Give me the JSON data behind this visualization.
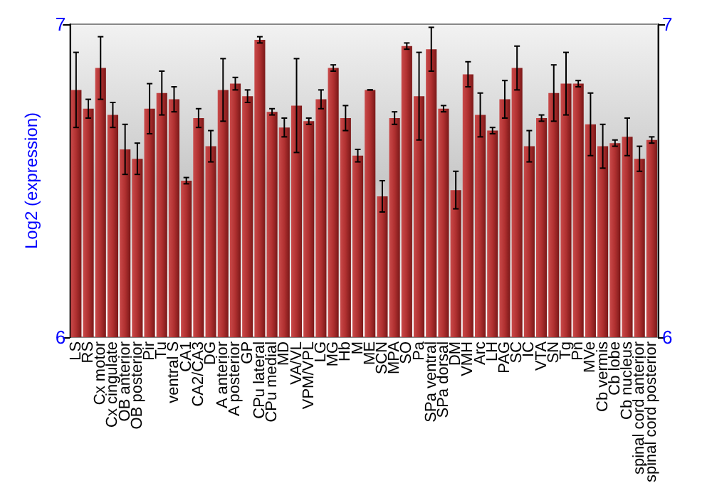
{
  "chart_data": {
    "type": "bar",
    "ylabel": "Log2 (expression)",
    "categories": [
      "LS",
      "RS",
      "Cx motor",
      "Cx cingulate",
      "OB anterior",
      "OB posterior",
      "Pir",
      "Tu",
      "ventral S",
      "CA1",
      "CA2/CA3",
      "DG",
      "A anterior",
      "A posterior",
      "GP",
      "CPu lateral",
      "CPu medial",
      "MD",
      "VA/VL",
      "VPM/VPL",
      "LG",
      "MG",
      "Hb",
      "M",
      "ME",
      "SCN",
      "MPA",
      "SO",
      "Pa",
      "SPa ventral",
      "SPa dorsal",
      "DM",
      "VMH",
      "Arc",
      "LH",
      "PAG",
      "SC",
      "IC",
      "VTA",
      "SN",
      "Tg",
      "Pn",
      "MVe",
      "Cb vermis",
      "Cb lobe",
      "Cb nucleus",
      "spinal cord anterior",
      "spinal cord posterior"
    ],
    "values": [
      6.79,
      6.73,
      6.86,
      6.71,
      6.6,
      6.57,
      6.73,
      6.78,
      6.76,
      6.5,
      6.7,
      6.61,
      6.79,
      6.81,
      6.77,
      6.95,
      6.72,
      6.67,
      6.74,
      6.69,
      6.76,
      6.86,
      6.7,
      6.58,
      6.79,
      6.45,
      6.7,
      6.93,
      6.77,
      6.92,
      6.73,
      6.47,
      6.84,
      6.71,
      6.66,
      6.76,
      6.86,
      6.61,
      6.7,
      6.78,
      6.81,
      6.81,
      6.68,
      6.61,
      6.62,
      6.64,
      6.57,
      6.63
    ],
    "errors": [
      0.12,
      0.03,
      0.1,
      0.04,
      0.08,
      0.05,
      0.08,
      0.07,
      0.04,
      0.01,
      0.03,
      0.05,
      0.1,
      0.02,
      0.02,
      0.01,
      0.01,
      0.03,
      0.15,
      0.01,
      0.03,
      0.01,
      0.04,
      0.02,
      0,
      0.05,
      0.02,
      0.01,
      0.14,
      0.07,
      0.01,
      0.06,
      0.04,
      0.07,
      0.01,
      0.06,
      0.07,
      0.05,
      0.01,
      0.09,
      0.1,
      0.01,
      0.1,
      0.07,
      0.01,
      0.06,
      0.04,
      0.01
    ],
    "color": "#b03030",
    "ylim": [
      6,
      7
    ],
    "yticks": [
      6,
      7
    ],
    "y2lim": [
      6,
      7
    ],
    "y2ticks": [
      6,
      7
    ],
    "grid": false
  }
}
